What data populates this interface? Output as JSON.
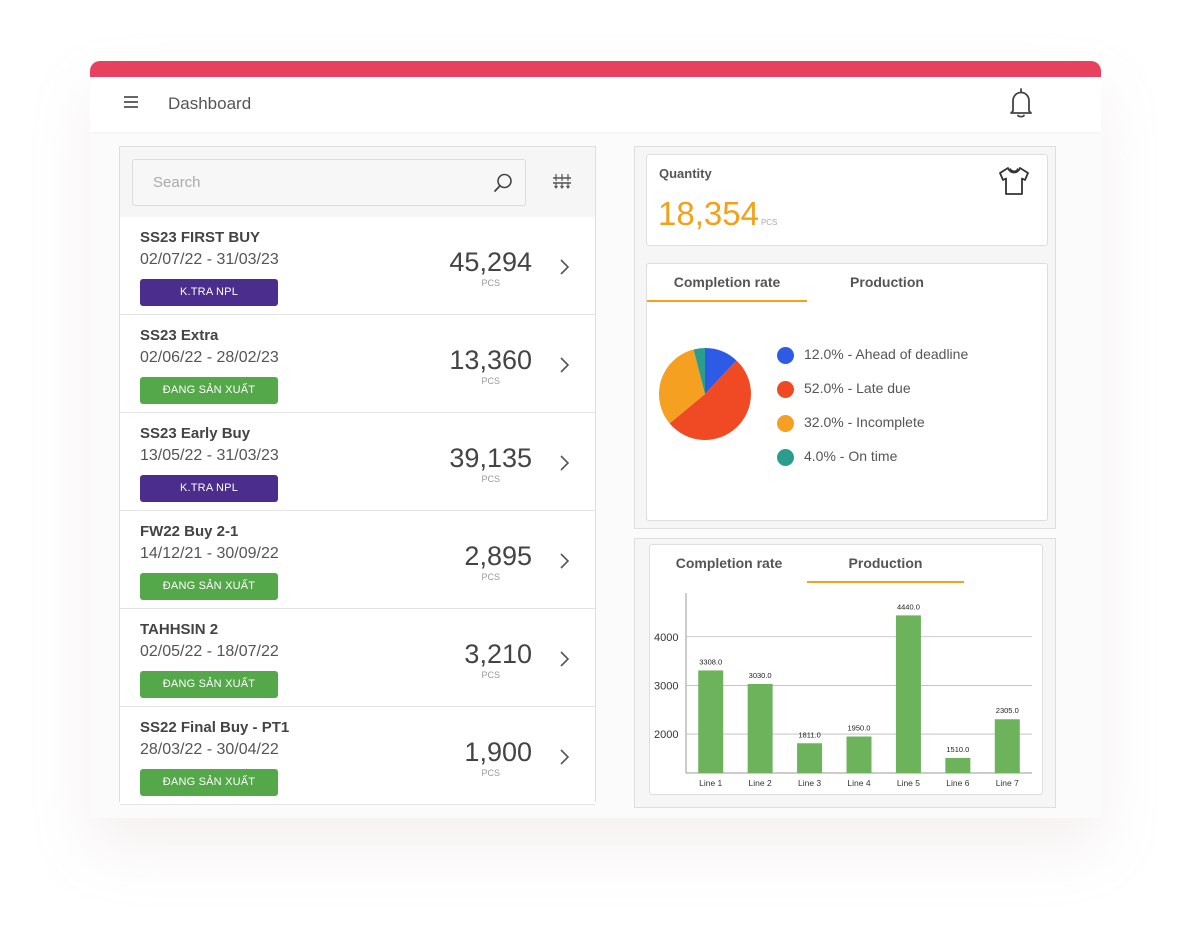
{
  "colors": {
    "topbar": "#e8405f",
    "purple_status": "#4a2d8c",
    "green_status": "#55a84a",
    "accent": "#f5a019",
    "bar": "#6cb35c"
  },
  "header": {
    "title": "Dashboard"
  },
  "search": {
    "placeholder": "Search"
  },
  "orders": [
    {
      "name": "SS23 FIRST BUY",
      "dates": "02/07/22 - 31/03/23",
      "status": "K.TRA NPL",
      "status_type": "purple",
      "quantity": "45,294",
      "unit": "PCS"
    },
    {
      "name": "SS23 Extra",
      "dates": "02/06/22 - 28/02/23",
      "status": "ĐANG SẢN XUẤT",
      "status_type": "green",
      "quantity": "13,360",
      "unit": "PCS"
    },
    {
      "name": "SS23 Early Buy",
      "dates": "13/05/22 - 31/03/23",
      "status": "K.TRA NPL",
      "status_type": "purple",
      "quantity": "39,135",
      "unit": "PCS"
    },
    {
      "name": "FW22 Buy 2-1",
      "dates": "14/12/21 - 30/09/22",
      "status": "ĐANG SẢN XUẤT",
      "status_type": "green",
      "quantity": "2,895",
      "unit": "PCS"
    },
    {
      "name": "TAHHSIN 2",
      "dates": "02/05/22 - 18/07/22",
      "status": "ĐANG SẢN XUẤT",
      "status_type": "green",
      "quantity": "3,210",
      "unit": "PCS"
    },
    {
      "name": "SS22 Final Buy - PT1",
      "dates": "28/03/22 - 30/04/22",
      "status": "ĐANG SẢN XUẤT",
      "status_type": "green",
      "quantity": "1,900",
      "unit": "PCS"
    }
  ],
  "quantity_card": {
    "label": "Quantity",
    "value": "18,354",
    "unit": "PCS"
  },
  "tabs": {
    "completion": "Completion rate",
    "production": "Production"
  },
  "chart_data": [
    {
      "type": "pie",
      "slices": [
        {
          "label": "12.0% - Ahead of deadline",
          "value": 12.0,
          "color": "#2e5be6"
        },
        {
          "label": "52.0% - Late due",
          "value": 52.0,
          "color": "#f04a24"
        },
        {
          "label": "32.0% - Incomplete",
          "value": 32.0,
          "color": "#f5a021"
        },
        {
          "label": "4.0% - On time",
          "value": 4.0,
          "color": "#2a9d8f"
        }
      ],
      "legend_position": "right"
    },
    {
      "type": "bar",
      "categories": [
        "Line 1",
        "Line 2",
        "Line 3",
        "Line 4",
        "Line 5",
        "Line 6",
        "Line 7"
      ],
      "values": [
        3308.0,
        3030.0,
        1811.0,
        1950.0,
        4440.0,
        1510.0,
        2305.0
      ],
      "data_labels": [
        "3308.0",
        "3030.0",
        "1811.0",
        "1950.0",
        "4440.0",
        "1510.0",
        "2305.0"
      ],
      "yticks": [
        "2000",
        "3000",
        "4000"
      ],
      "ylim": [
        1200,
        4900
      ],
      "grid": true
    }
  ]
}
